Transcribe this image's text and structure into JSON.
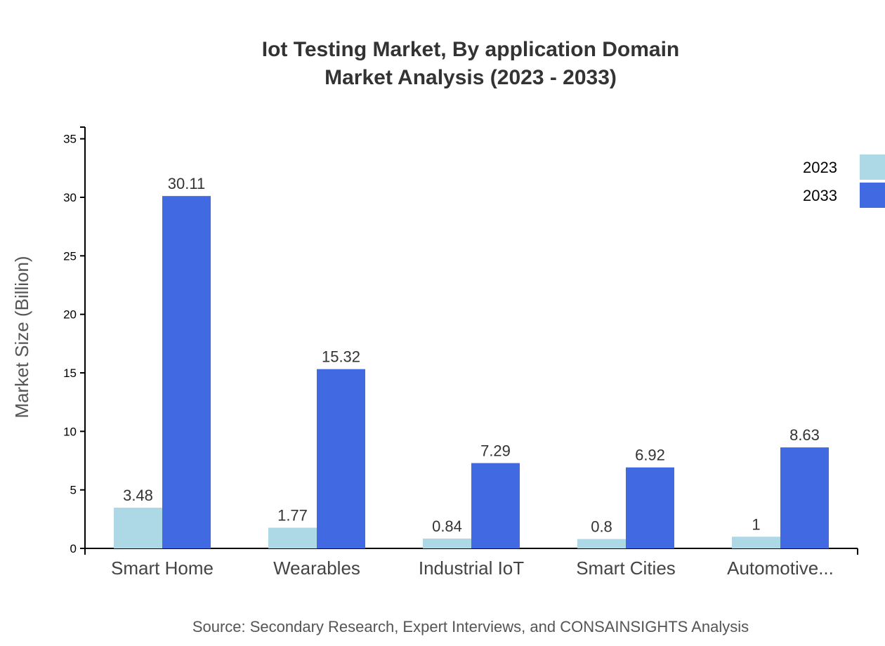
{
  "chart_data": {
    "type": "bar",
    "title": "Iot Testing Market, By application Domain",
    "subtitle": "Market Analysis (2023 - 2033)",
    "xlabel": "",
    "ylabel": "Market Size (Billion)",
    "ylim": [
      0,
      36
    ],
    "yticks": [
      0,
      5,
      10,
      15,
      20,
      25,
      30,
      35
    ],
    "categories": [
      "Smart Home",
      "Wearables",
      "Industrial IoT",
      "Smart Cities",
      "Automotive..."
    ],
    "series": [
      {
        "name": "2023",
        "color": "#add8e6",
        "values": [
          3.48,
          1.77,
          0.84,
          0.8,
          1
        ]
      },
      {
        "name": "2033",
        "color": "#4169e1",
        "values": [
          30.11,
          15.32,
          7.29,
          6.92,
          8.63
        ]
      }
    ],
    "grid": false,
    "legend": "top-right",
    "source": "Source: Secondary Research, Expert Interviews, and CONSAINSIGHTS Analysis"
  }
}
